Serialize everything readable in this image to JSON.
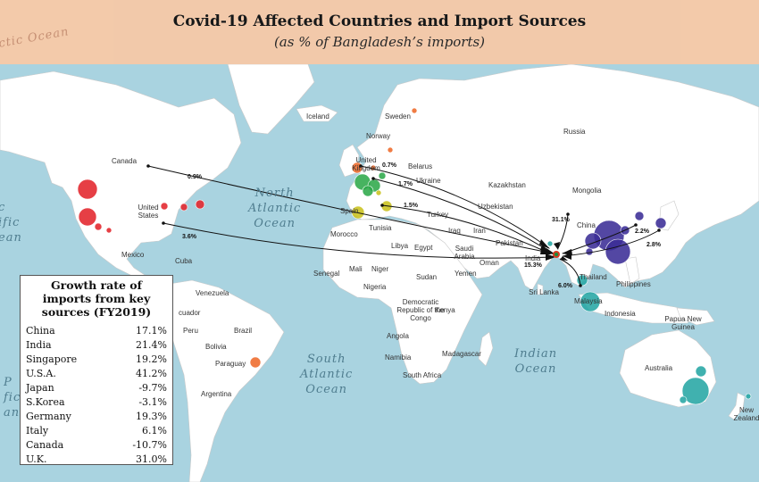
{
  "title": "Covid-19 Affected Countries and Import Sources",
  "subtitle": "(as % of Bangladesh’s imports)",
  "country_labels": [
    {
      "id": "iceland",
      "text": "Iceland"
    },
    {
      "id": "sweden",
      "text": "Sweden"
    },
    {
      "id": "norway",
      "text": "Norway"
    },
    {
      "id": "russia",
      "text": "Russia"
    },
    {
      "id": "canada",
      "text": "Canada"
    },
    {
      "id": "united-kingdom",
      "text": "United Kingdom"
    },
    {
      "id": "belarus",
      "text": "Belarus"
    },
    {
      "id": "ukraine",
      "text": "Ukraine"
    },
    {
      "id": "kazakhstan",
      "text": "Kazakhstan"
    },
    {
      "id": "mongolia",
      "text": "Mongolia"
    },
    {
      "id": "uzbekistan",
      "text": "Uzbekistan"
    },
    {
      "id": "united-states",
      "text": "United States"
    },
    {
      "id": "spain",
      "text": "Spain"
    },
    {
      "id": "turkey",
      "text": "Turkey"
    },
    {
      "id": "china",
      "text": "China"
    },
    {
      "id": "morocco",
      "text": "Morocco"
    },
    {
      "id": "tunisia",
      "text": "Tunisia"
    },
    {
      "id": "iraq",
      "text": "Iraq"
    },
    {
      "id": "iran",
      "text": "Iran"
    },
    {
      "id": "pakistan",
      "text": "Pakistan"
    },
    {
      "id": "mexico",
      "text": "Mexico"
    },
    {
      "id": "cuba",
      "text": "Cuba"
    },
    {
      "id": "libya",
      "text": "Libya"
    },
    {
      "id": "egypt",
      "text": "Egypt"
    },
    {
      "id": "saudi-arabia",
      "text": "Saudi Arabia"
    },
    {
      "id": "oman",
      "text": "Oman"
    },
    {
      "id": "india",
      "text": "India"
    },
    {
      "id": "thailand",
      "text": "Thailand"
    },
    {
      "id": "mali",
      "text": "Mali"
    },
    {
      "id": "niger",
      "text": "Niger"
    },
    {
      "id": "senegal",
      "text": "Senegal"
    },
    {
      "id": "sudan",
      "text": "Sudan"
    },
    {
      "id": "yemen",
      "text": "Yemen"
    },
    {
      "id": "nigeria",
      "text": "Nigeria"
    },
    {
      "id": "philippines",
      "text": "Philippines"
    },
    {
      "id": "venezuela",
      "text": "Venezuela"
    },
    {
      "id": "sri-lanka",
      "text": "Sri Lanka"
    },
    {
      "id": "malaysia",
      "text": "Malaysia"
    },
    {
      "id": "ecuador",
      "text": "cuador"
    },
    {
      "id": "drc",
      "text": "Democratic Republic of the Congo"
    },
    {
      "id": "kenya",
      "text": "Kenya"
    },
    {
      "id": "indonesia",
      "text": "Indonesia"
    },
    {
      "id": "peru",
      "text": "Peru"
    },
    {
      "id": "brazil",
      "text": "Brazil"
    },
    {
      "id": "papua-new-guinea",
      "text": "Papua New Guinea"
    },
    {
      "id": "angola",
      "text": "Angola"
    },
    {
      "id": "bolivia",
      "text": "Bolivia"
    },
    {
      "id": "namibia",
      "text": "Namibia"
    },
    {
      "id": "madagascar",
      "text": "Madagascar"
    },
    {
      "id": "paraguay",
      "text": "Paraguay"
    },
    {
      "id": "australia",
      "text": "Australia"
    },
    {
      "id": "south-africa",
      "text": "South Africa"
    },
    {
      "id": "argentina",
      "text": "Argentina"
    },
    {
      "id": "new-zealand",
      "text": "New Zealand"
    }
  ],
  "oceans": {
    "north_atlantic": [
      "North",
      "Atlantic",
      "Ocean"
    ],
    "south_atlantic": [
      "South",
      "Atlantic",
      "Ocean"
    ],
    "indian": [
      "Indian",
      "Ocean"
    ],
    "pacific_left": [
      "c",
      "ific",
      "ean"
    ],
    "pacific_bottom": [
      "P",
      "fic",
      "an"
    ],
    "arctic": "ctic Ocean"
  },
  "import_shares": [
    {
      "id": "canada",
      "value": "0.9%"
    },
    {
      "id": "usa",
      "value": "3.6%"
    },
    {
      "id": "uk",
      "value": "0.7%"
    },
    {
      "id": "germany",
      "value": "1.7%"
    },
    {
      "id": "italy",
      "value": "1.5%"
    },
    {
      "id": "china",
      "value": "31.1%"
    },
    {
      "id": "india",
      "value": "15.3%"
    },
    {
      "id": "singapore",
      "value": "6.0%"
    },
    {
      "id": "south-korea",
      "value": "2.2%"
    },
    {
      "id": "japan",
      "value": "2.8%"
    }
  ],
  "growth_table": {
    "title": "Growth rate of imports from key sources (FY2019)",
    "rows": [
      {
        "country": "China",
        "value": "17.1%"
      },
      {
        "country": "India",
        "value": "21.4%"
      },
      {
        "country": "Singapore",
        "value": "19.2%"
      },
      {
        "country": "U.S.A.",
        "value": "41.2%"
      },
      {
        "country": "Japan",
        "value": "-9.7%"
      },
      {
        "country": "S.Korea",
        "value": "-3.1%"
      },
      {
        "country": "Germany",
        "value": "19.3%"
      },
      {
        "country": "Italy",
        "value": "6.1%"
      },
      {
        "country": "Canada",
        "value": "-10.7%"
      },
      {
        "country": "U.K.",
        "value": "31.0%"
      }
    ]
  },
  "colors": {
    "ocean": "#a9d3e0",
    "land": "#ffffff",
    "banner": "#f6c9a8",
    "usa_cases": "#e3242b",
    "china_cases": "#3b2d96",
    "europe_cases": "#2ea84a",
    "australia_cases": "#26a6a4",
    "south_america_cases": "#ee6a2a",
    "spain_cases": "#c9c21e",
    "flow_arrow": "#111111"
  }
}
